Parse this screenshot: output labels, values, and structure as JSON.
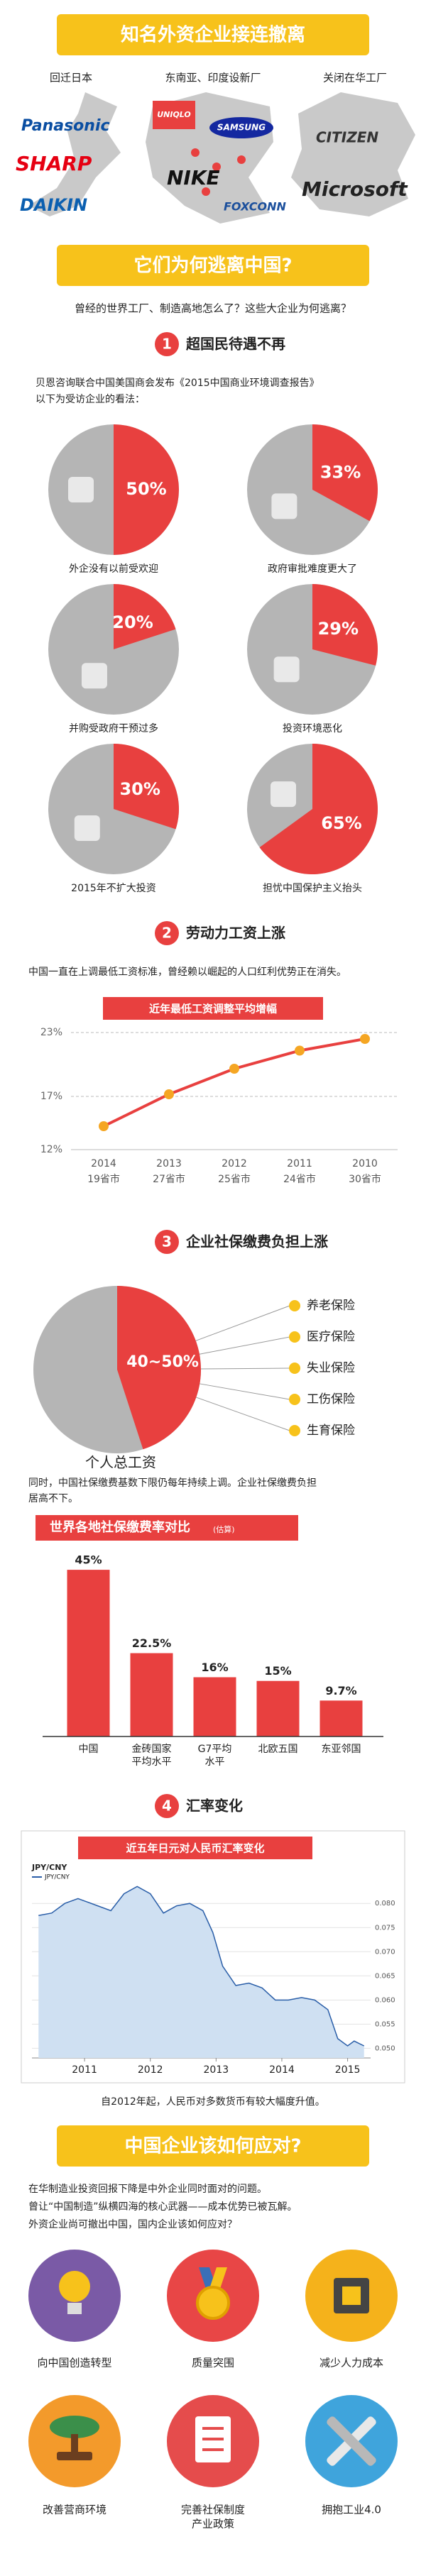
{
  "header": {
    "title": "知名外资企业接连撤离"
  },
  "exits": [
    {
      "label": "回迁日本",
      "brands": [
        "Panasonic",
        "SHARP",
        "DAIKIN"
      ]
    },
    {
      "label": "东南亚、印度设新厂",
      "brands": [
        "UNIQLO",
        "SAMSUNG",
        "NIKE",
        "FOXCONN"
      ]
    },
    {
      "label": "关闭在华工厂",
      "brands": [
        "CITIZEN",
        "Microsoft"
      ]
    }
  ],
  "why": {
    "title": "它们为何逃离中国?",
    "intro": "曾经的世界工厂、制造高地怎么了？这些大企业为何逃离？"
  },
  "section1": {
    "number": 1,
    "title": "超国民待遇不再",
    "text": [
      "贝恩咨询联合中国美国商会发布《2015中国商业环境调查报告》",
      "以下为受访企业的看法："
    ],
    "survey": {
      "type": "pie",
      "values": [
        50,
        33,
        20,
        29,
        30,
        65
      ],
      "value_labels": [
        "50%",
        "33%",
        "20%",
        "29%",
        "30%",
        "65%"
      ],
      "labels": [
        "外企没有以前受欢迎",
        "政府审批难度更大了",
        "并购受政府干预过多",
        "投资环境恶化",
        "2015年不扩大投资",
        "担忧中国保护主义抬头"
      ],
      "color": "#e8403f"
    }
  },
  "section2": {
    "number": 2,
    "title": "劳动力工资上涨",
    "text": "中国一直在上调最低工资标准，曾经赖以崛起的人口红利优势正在消失。",
    "chart": {
      "type": "line",
      "title": "近年最低工资调整平均增幅",
      "categories": [
        "2014",
        "2013",
        "2012",
        "2011",
        "2010"
      ],
      "sublabels": [
        "19省市",
        "27省市",
        "25省市",
        "24省市",
        "30省市"
      ],
      "values": [
        14.2,
        17.2,
        19.6,
        21.3,
        22.4
      ],
      "ylim": [
        12,
        23
      ],
      "yticks": [
        {
          "value": 12,
          "label": "12%"
        },
        {
          "value": 17,
          "label": "17%"
        },
        {
          "value": 23,
          "label": "23%"
        }
      ],
      "color": "#e8403f",
      "marker_color": "#f5a623",
      "grid": true
    }
  },
  "section3": {
    "number": 3,
    "title": "企业社保缴费负担上涨",
    "pie": {
      "type": "pie",
      "range": [
        40,
        50
      ],
      "range_label": "40~50%",
      "legend": [
        "养老保险",
        "医疗保险",
        "失业保险",
        "工伤保险",
        "生育保险"
      ],
      "caption": "个人总工资",
      "color": "#e8403f"
    },
    "text": [
      "同时，中国社保缴费基数下限仍每年持续上调。企业社保缴费负担",
      "居高不下。"
    ],
    "bar_chart": {
      "type": "bar",
      "title": "世界各地社保缴费率对比",
      "note": "(估算)",
      "categories": [
        [
          "中国"
        ],
        [
          "金砖国家",
          "平均水平"
        ],
        [
          "G7平均",
          "水平"
        ],
        [
          "北欧五国"
        ],
        [
          "东亚邻国"
        ]
      ],
      "values": [
        45,
        22.5,
        16,
        15,
        9.7
      ],
      "value_labels": [
        "45%",
        "22.5%",
        "16%",
        "15%",
        "9.7%"
      ],
      "ylim": [
        0,
        50
      ],
      "color": "#e8403f"
    }
  },
  "section4": {
    "number": 4,
    "title": "汇率变化",
    "chart": {
      "type": "area",
      "title": "近五年日元对人民币汇率变化",
      "axis_label": "JPY/CNY",
      "x": [
        2010.3,
        2010.5,
        2010.7,
        2010.9,
        2011.0,
        2011.2,
        2011.4,
        2011.6,
        2011.8,
        2012.0,
        2012.2,
        2012.4,
        2012.6,
        2012.8,
        2012.95,
        2013.1,
        2013.3,
        2013.5,
        2013.7,
        2013.9,
        2014.1,
        2014.3,
        2014.5,
        2014.7,
        2014.85,
        2015.0,
        2015.1,
        2015.25
      ],
      "series": [
        {
          "name": "JPY/CNY",
          "color": "#2a5ea8",
          "axis": "y2",
          "values": [
            0.0775,
            0.078,
            0.08,
            0.081,
            0.0805,
            0.0795,
            0.0785,
            0.082,
            0.0835,
            0.082,
            0.078,
            0.0795,
            0.08,
            0.0785,
            0.074,
            0.067,
            0.063,
            0.0635,
            0.0625,
            0.06,
            0.06,
            0.0605,
            0.06,
            0.058,
            0.052,
            0.0505,
            0.0515,
            0.0505
          ]
        }
      ],
      "xlim": [
        2010.2,
        2015.35
      ],
      "xticks": [
        2011,
        2012,
        2013,
        2014,
        2015
      ],
      "y2lim": [
        0.048,
        0.084
      ],
      "y2ticks": [
        {
          "value": 0.05,
          "label": "0.050"
        },
        0.055,
        {
          "value": 0.06,
          "label": "0.060"
        },
        0.065,
        {
          "value": 0.07,
          "label": "0.070"
        },
        0.075,
        {
          "value": 0.08,
          "label": "0.080"
        }
      ],
      "grid": true
    },
    "text": "自2012年起，人民币对多数货币有较大幅度升值。"
  },
  "section5": {
    "title": "中国企业该如何应对?",
    "text": [
      "在华制造业投资回报下降是中外企业同时面对的问题。",
      "曾让“中国制造”纵横四海的核心武器——成本优势已被瓦解。",
      "外资企业尚可撤出中国，国内企业该如何应对？"
    ],
    "actions": [
      [
        "向中国创造转型"
      ],
      [
        "质量突围"
      ],
      [
        "减少人力成本"
      ],
      [
        "改善营商环境"
      ],
      [
        "完善社保制度",
        "产业政策"
      ],
      [
        "拥抱工业4.0"
      ]
    ]
  }
}
